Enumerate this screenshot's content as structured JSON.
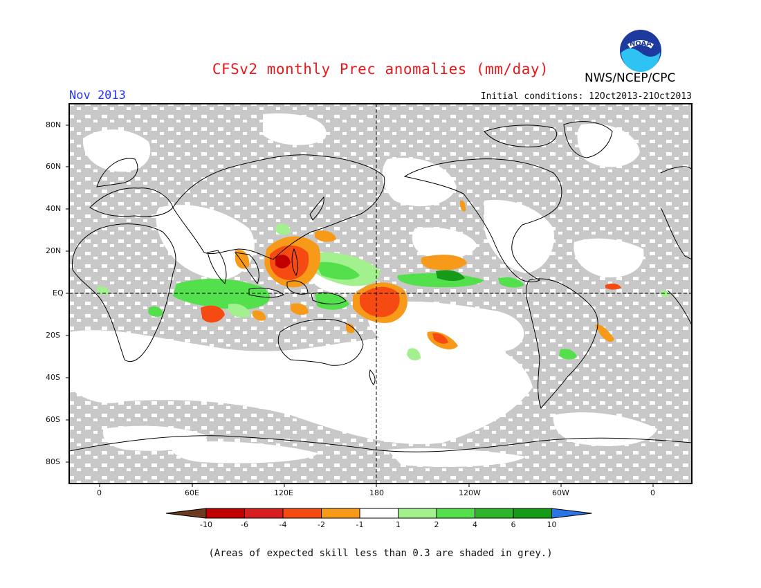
{
  "header": {
    "title": "CFSv2 monthly Prec anomalies (mm/day)",
    "month": "Nov 2013",
    "agency": "NWS/NCEP/CPC",
    "logo_text": "NOAA",
    "initial_conditions": "Initial conditions: 12Oct2013-21Oct2013"
  },
  "map": {
    "projection": "equirectangular",
    "lon_labels": [
      "0",
      "60E",
      "120E",
      "180",
      "120W",
      "60W",
      "0"
    ],
    "lat_labels": [
      "80N",
      "60N",
      "40N",
      "20N",
      "EQ",
      "20S",
      "40S",
      "60S",
      "80S"
    ],
    "low_skill_color": "#c8c8c8",
    "reference_lines": [
      "equator",
      "dateline"
    ]
  },
  "colorbar": {
    "labels": [
      "-10",
      "-6",
      "-4",
      "-2",
      "-1",
      "1",
      "2",
      "4",
      "6",
      "10"
    ],
    "colors": [
      "#6b3a1f",
      "#c00000",
      "#d81f1f",
      "#f54a12",
      "#f79a19",
      "#ffffff",
      "#a3f08f",
      "#54e04c",
      "#2fb52c",
      "#169b18",
      "#2a74e6"
    ]
  },
  "footnote": "(Areas of expected skill less than 0.3 are shaded in grey.)"
}
